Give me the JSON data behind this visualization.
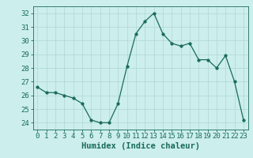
{
  "x": [
    0,
    1,
    2,
    3,
    4,
    5,
    6,
    7,
    8,
    9,
    10,
    11,
    12,
    13,
    14,
    15,
    16,
    17,
    18,
    19,
    20,
    21,
    22,
    23
  ],
  "y": [
    26.6,
    26.2,
    26.2,
    26.0,
    25.8,
    25.4,
    24.2,
    24.0,
    24.0,
    25.4,
    28.1,
    30.5,
    31.4,
    32.0,
    30.5,
    29.8,
    29.6,
    29.8,
    28.6,
    28.6,
    28.0,
    28.9,
    27.0,
    24.2
  ],
  "line_color": "#1a6b5a",
  "marker": "o",
  "marker_size": 2.5,
  "bg_color": "#cceeed",
  "grid_color": "#aed8d6",
  "xlabel": "Humidex (Indice chaleur)",
  "ylim": [
    23.5,
    32.5
  ],
  "xlim": [
    -0.5,
    23.5
  ],
  "yticks": [
    24,
    25,
    26,
    27,
    28,
    29,
    30,
    31,
    32
  ],
  "xticks": [
    0,
    1,
    2,
    3,
    4,
    5,
    6,
    7,
    8,
    9,
    10,
    11,
    12,
    13,
    14,
    15,
    16,
    17,
    18,
    19,
    20,
    21,
    22,
    23
  ],
  "tick_label_size": 6.5,
  "xlabel_size": 7.5
}
